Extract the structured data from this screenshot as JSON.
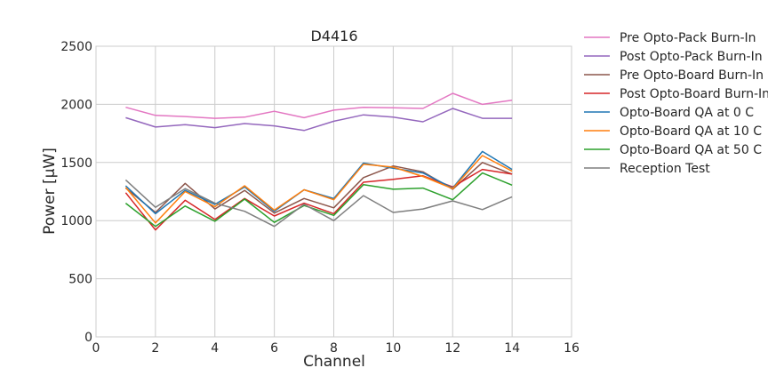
{
  "chart_data": {
    "type": "line",
    "title": "D4416",
    "xlabel": "Channel",
    "ylabel": "Power [μW]",
    "xlim": [
      0,
      16
    ],
    "ylim": [
      0,
      2500
    ],
    "xticks": [
      "0",
      "2",
      "4",
      "6",
      "8",
      "10",
      "12",
      "14",
      "16"
    ],
    "yticks": [
      "0",
      "500",
      "1000",
      "1500",
      "2000",
      "2500"
    ],
    "grid": true,
    "legend_position": "outside-right",
    "x": [
      1,
      2,
      3,
      4,
      5,
      6,
      7,
      8,
      9,
      10,
      11,
      12,
      13,
      14
    ],
    "series": [
      {
        "name": "Pre Opto-Pack Burn-In",
        "color": "#e377c2",
        "values": [
          1975,
          1905,
          1895,
          1880,
          1890,
          1940,
          1885,
          1950,
          1975,
          1970,
          1965,
          2095,
          2000,
          2035
        ]
      },
      {
        "name": "Post Opto-Pack Burn-In",
        "color": "#9467bd",
        "values": [
          1885,
          1805,
          1825,
          1800,
          1835,
          1815,
          1775,
          1855,
          1910,
          1890,
          1850,
          1965,
          1880,
          1880
        ]
      },
      {
        "name": "Pre Opto-Board Burn-In",
        "color": "#8c564b",
        "values": [
          1280,
          1070,
          1320,
          1100,
          1260,
          1065,
          1190,
          1110,
          1370,
          1470,
          1420,
          1270,
          1500,
          1400
        ]
      },
      {
        "name": "Post Opto-Board Burn-In",
        "color": "#d62728",
        "values": [
          1240,
          920,
          1175,
          1010,
          1190,
          1040,
          1150,
          1060,
          1330,
          1355,
          1385,
          1290,
          1440,
          1400
        ]
      },
      {
        "name": "Opto-Board QA at 0 C",
        "color": "#1f77b4",
        "values": [
          1300,
          1060,
          1260,
          1140,
          1290,
          1080,
          1265,
          1190,
          1495,
          1450,
          1410,
          1280,
          1595,
          1440
        ]
      },
      {
        "name": "Opto-Board QA at 10 C",
        "color": "#ff7f0e",
        "values": [
          1285,
          980,
          1250,
          1120,
          1300,
          1090,
          1265,
          1180,
          1485,
          1460,
          1380,
          1275,
          1560,
          1425
        ]
      },
      {
        "name": "Opto-Board QA at 50 C",
        "color": "#2ca02c",
        "values": [
          1150,
          950,
          1125,
          995,
          1185,
          985,
          1130,
          1045,
          1310,
          1270,
          1280,
          1180,
          1410,
          1305
        ]
      },
      {
        "name": "Reception Test",
        "color": "#7f7f7f",
        "values": [
          1350,
          1115,
          1275,
          1150,
          1080,
          950,
          1140,
          1000,
          1215,
          1070,
          1100,
          1170,
          1095,
          1205
        ]
      }
    ]
  }
}
